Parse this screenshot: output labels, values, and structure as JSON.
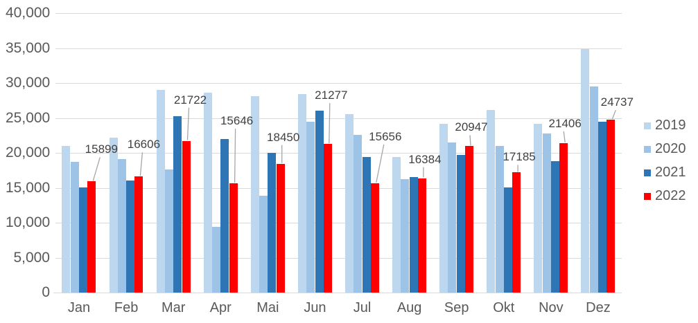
{
  "chart_data": {
    "type": "bar",
    "title": "",
    "xlabel": "",
    "ylabel": "",
    "categories": [
      "Jan",
      "Feb",
      "Mar",
      "Apr",
      "Mai",
      "Jun",
      "Jul",
      "Aug",
      "Sep",
      "Okt",
      "Nov",
      "Dez"
    ],
    "series": [
      {
        "name": "2019",
        "color": "#BDD7EE",
        "values": [
          21000,
          22150,
          29000,
          28600,
          28100,
          28400,
          25550,
          19400,
          24200,
          26150,
          24200,
          34900
        ]
      },
      {
        "name": "2020",
        "color": "#9DC3E6",
        "values": [
          18700,
          19100,
          17600,
          9400,
          13900,
          24500,
          22600,
          16250,
          21450,
          20950,
          22800,
          29550
        ]
      },
      {
        "name": "2021",
        "color": "#2E75B6",
        "values": [
          15100,
          16050,
          25250,
          22000,
          20000,
          26050,
          19450,
          16550,
          19700,
          15100,
          18800,
          24500
        ]
      },
      {
        "name": "2022",
        "color": "#FF0000",
        "data_labels": true,
        "values": [
          15899,
          16606,
          21722,
          15646,
          18450,
          21277,
          15656,
          16384,
          20947,
          17185,
          21406,
          24737
        ]
      }
    ],
    "data_label_texts": [
      "15899",
      "16606",
      "21722",
      "15646",
      "18450",
      "21277",
      "15656",
      "16384",
      "20947",
      "17185",
      "21406",
      "24737"
    ],
    "ylim": [
      0,
      40000
    ],
    "ytick_values": [
      0,
      5000,
      10000,
      15000,
      20000,
      25000,
      30000,
      35000,
      40000
    ],
    "ytick_labels": [
      "0",
      "5,000",
      "10,000",
      "15,000",
      "20,000",
      "25,000",
      "30,000",
      "35,000",
      "40,000"
    ],
    "grid": true,
    "legend_position": "right",
    "legend_items": [
      "2019",
      "2020",
      "2021",
      "2022"
    ],
    "label_offsets": [
      {
        "dx": 14,
        "gap": 37
      },
      {
        "dx": 7,
        "gap": 37
      },
      {
        "dx": 6,
        "gap": 50
      },
      {
        "dx": 5,
        "gap": 81
      },
      {
        "dx": 4,
        "gap": 29
      },
      {
        "dx": 5,
        "gap": 61
      },
      {
        "dx": 15,
        "gap": 58
      },
      {
        "dx": 4,
        "gap": 18
      },
      {
        "dx": 3,
        "gap": 18
      },
      {
        "dx": 4,
        "gap": 13
      },
      {
        "dx": 2,
        "gap": 19
      },
      {
        "dx": 9,
        "gap": 16
      }
    ],
    "colors": {
      "gridline": "#D9D9D9",
      "axis_line": "#D9D9D9",
      "tick_text": "#595959",
      "data_label_text": "#404040",
      "leader_line": "#A6A6A6",
      "background": "#FFFFFF"
    }
  }
}
